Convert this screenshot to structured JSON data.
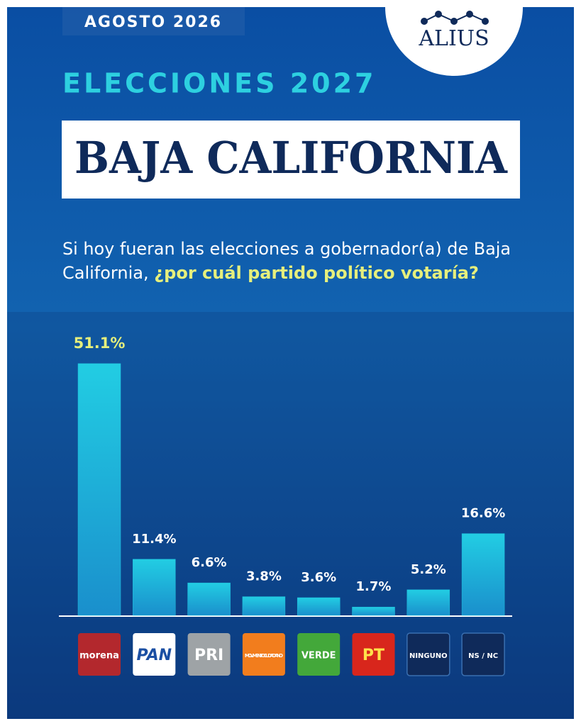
{
  "header": {
    "date": "AGOSTO 2026",
    "brand": "ALIUS"
  },
  "chart_data": {
    "type": "bar",
    "title": "ELECCIONES 2027",
    "subtitle": "BAJA CALIFORNIA",
    "question": {
      "line1": "Si hoy fueran las elecciones a gobernador(a) de Baja",
      "line2": "California,",
      "highlight": "¿por cuál partido político votaría?"
    },
    "categories": [
      "morena",
      "PAN",
      "PRI",
      "MOVIMIENTO CIUDADANO",
      "VERDE",
      "PT",
      "NINGUNO",
      "NS / NC"
    ],
    "logo_colors": [
      "#b3282d",
      "#ffffff",
      "#9ea3a6",
      "#f27d1d",
      "#43a83a",
      "#d8261c",
      "#0f2a5a",
      "#0f2a5a"
    ],
    "logo_text_colors": [
      "#ffffff",
      "#1b4fa3",
      "#ffffff",
      "#ffffff",
      "#ffffff",
      "#ffe14a",
      "#ffffff",
      "#ffffff"
    ],
    "values": [
      51.1,
      11.4,
      6.6,
      3.8,
      3.6,
      1.7,
      5.2,
      16.6
    ],
    "value_labels": [
      "51.1%",
      "11.4%",
      "6.6%",
      "3.8%",
      "3.6%",
      "1.7%",
      "5.2%",
      "16.6%"
    ],
    "color": "#1fc3de"
  }
}
